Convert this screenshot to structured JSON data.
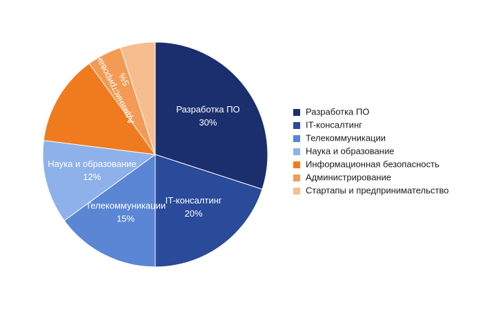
{
  "chart_data": {
    "type": "pie",
    "categories": [
      "Разработка ПО",
      "IT-консалтинг",
      "Телекоммуникации",
      "Наука и образование",
      "Информационная безопасность",
      "Администрирование",
      "Стартапы и предпринимательство"
    ],
    "values": [
      30,
      20,
      15,
      12,
      13,
      5,
      5
    ],
    "value_labels": [
      "30%",
      "20%",
      "15%",
      "12%",
      null,
      "5%",
      null
    ],
    "colors": [
      "#1b2f6e",
      "#2a4a9a",
      "#5a86d4",
      "#8fb1ea",
      "#f07a1e",
      "#f39a55",
      "#f7bd8f"
    ],
    "legend": "right"
  }
}
